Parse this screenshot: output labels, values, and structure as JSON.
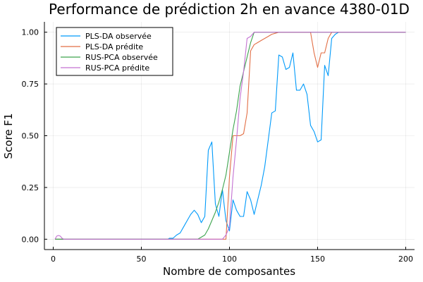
{
  "chart_data": {
    "type": "line",
    "title": "Performance de prédiction 2h en avance 4380-01D",
    "xlabel": "Nombre de composantes",
    "ylabel": "Score F1",
    "xlim": [
      -5,
      205
    ],
    "ylim": [
      -0.05,
      1.05
    ],
    "xticks": [
      0,
      50,
      100,
      150,
      200
    ],
    "yticks": [
      0.0,
      0.25,
      0.5,
      0.75,
      1.0
    ],
    "xtick_labels": [
      "0",
      "50",
      "100",
      "150",
      "200"
    ],
    "ytick_labels": [
      "0.00",
      "0.25",
      "0.50",
      "0.75",
      "1.00"
    ],
    "grid": true,
    "legend_position": "top-left",
    "series": [
      {
        "name": "PLS-DA observée",
        "color": "#009AFA",
        "x": [
          1,
          65,
          66,
          67,
          68,
          70,
          72,
          74,
          76,
          78,
          80,
          82,
          84,
          86,
          88,
          90,
          92,
          94,
          96,
          98,
          100,
          102,
          104,
          106,
          108,
          110,
          112,
          114,
          116,
          118,
          120,
          122,
          124,
          126,
          128,
          130,
          132,
          134,
          136,
          138,
          140,
          142,
          144,
          146,
          148,
          150,
          152,
          154,
          156,
          158,
          160,
          162,
          164,
          166,
          200
        ],
        "y": [
          0.0,
          0.0,
          0.005,
          0.005,
          0.005,
          0.02,
          0.03,
          0.06,
          0.09,
          0.12,
          0.14,
          0.12,
          0.08,
          0.11,
          0.43,
          0.47,
          0.17,
          0.11,
          0.24,
          0.09,
          0.04,
          0.19,
          0.14,
          0.11,
          0.11,
          0.23,
          0.19,
          0.12,
          0.19,
          0.26,
          0.35,
          0.48,
          0.61,
          0.62,
          0.89,
          0.88,
          0.82,
          0.83,
          0.9,
          0.72,
          0.72,
          0.75,
          0.7,
          0.55,
          0.52,
          0.47,
          0.48,
          0.84,
          0.79,
          0.97,
          0.99,
          1.0,
          1.0,
          1.0,
          1.0
        ]
      },
      {
        "name": "PLS-DA prédite",
        "color": "#E26F46",
        "x": [
          1,
          98,
          100,
          102,
          104,
          106,
          108,
          110,
          112,
          114,
          116,
          118,
          120,
          122,
          124,
          126,
          128,
          130,
          132,
          134,
          136,
          138,
          140,
          142,
          144,
          146,
          148,
          150,
          152,
          154,
          156,
          158,
          160,
          162,
          164,
          166,
          200
        ],
        "y": [
          0.0,
          0.0,
          0.3,
          0.5,
          0.5,
          0.5,
          0.51,
          0.61,
          0.91,
          0.94,
          0.95,
          0.96,
          0.97,
          0.98,
          0.99,
          0.995,
          1.0,
          1.0,
          1.0,
          1.0,
          1.0,
          1.0,
          1.0,
          1.0,
          1.0,
          1.0,
          0.9,
          0.83,
          0.9,
          0.9,
          0.97,
          1.0,
          1.0,
          1.0,
          1.0,
          1.0,
          1.0
        ]
      },
      {
        "name": "RUS-PCA observée",
        "color": "#3DA44E",
        "x": [
          1,
          82,
          84,
          86,
          88,
          90,
          92,
          94,
          96,
          98,
          100,
          102,
          104,
          106,
          108,
          110,
          112,
          114,
          116,
          118,
          200
        ],
        "y": [
          0.0,
          0.0,
          0.01,
          0.02,
          0.05,
          0.09,
          0.13,
          0.18,
          0.24,
          0.31,
          0.42,
          0.53,
          0.62,
          0.74,
          0.81,
          0.88,
          0.95,
          1.0,
          1.0,
          1.0,
          1.0
        ]
      },
      {
        "name": "RUS-PCA prédite",
        "color": "#C371D2",
        "x": [
          1,
          2,
          3,
          4,
          5,
          6,
          8,
          10,
          96,
          98,
          100,
          102,
          104,
          106,
          108,
          110,
          112,
          114,
          116,
          118,
          200
        ],
        "y": [
          0.0,
          0.015,
          0.018,
          0.015,
          0.005,
          0.0,
          0.0,
          0.0,
          0.0,
          0.02,
          0.06,
          0.3,
          0.48,
          0.68,
          0.81,
          0.97,
          0.98,
          1.0,
          1.0,
          1.0,
          1.0
        ]
      }
    ]
  }
}
